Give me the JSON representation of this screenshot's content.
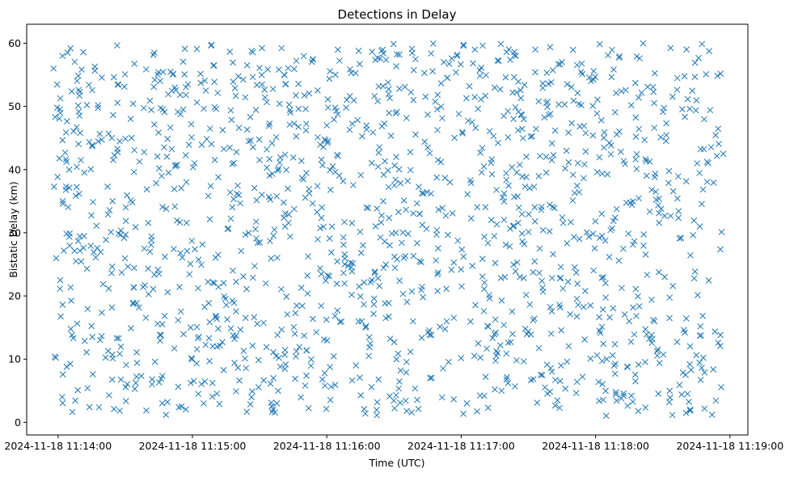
{
  "chart_data": {
    "type": "scatter",
    "title": "Detections in Delay",
    "xlabel": "Time (UTC)",
    "ylabel": "Bistatic Delay (km)",
    "xlim": [
      "2024-11-18 11:13:46",
      "2024-11-18 11:19:08"
    ],
    "ylim": [
      -2,
      63
    ],
    "x_ticks": [
      "2024-11-18 11:14:00",
      "2024-11-18 11:15:00",
      "2024-11-18 11:16:00",
      "2024-11-18 11:17:00",
      "2024-11-18 11:18:00",
      "2024-11-18 11:19:00"
    ],
    "y_ticks": [
      "0",
      "10",
      "20",
      "30",
      "40",
      "50",
      "60"
    ],
    "x_range": [
      "2024-11-18 11:13:58",
      "2024-11-18 11:18:57"
    ],
    "y_range": [
      1,
      60
    ],
    "grid": false,
    "legend": "none",
    "marker": "x",
    "marker_color": "#1f77b4",
    "point_count": 1500,
    "x_sample": [
      "2024-11-18 11:13:58",
      "2024-11-18 11:14:01",
      "2024-11-18 11:14:02",
      "2024-11-18 11:14:05",
      "2024-11-18 11:14:08",
      "2024-11-18 11:14:24",
      "2024-11-18 11:14:43",
      "2024-11-18 11:15:05",
      "2024-11-18 11:15:11",
      "2024-11-18 11:15:41",
      "2024-11-18 11:16:00",
      "2024-11-18 11:16:13",
      "2024-11-18 11:16:55",
      "2024-11-18 11:17:18",
      "2024-11-18 11:17:45",
      "2024-11-18 11:18:05",
      "2024-11-18 11:18:33",
      "2024-11-18 11:18:52",
      "2024-11-18 11:18:57"
    ],
    "y_sample": [
      56,
      22.5,
      58,
      40,
      25.5,
      45,
      58.5,
      3,
      12,
      55,
      47,
      9,
      38,
      5,
      57,
      10,
      16.5,
      1.2,
      42.5
    ]
  }
}
